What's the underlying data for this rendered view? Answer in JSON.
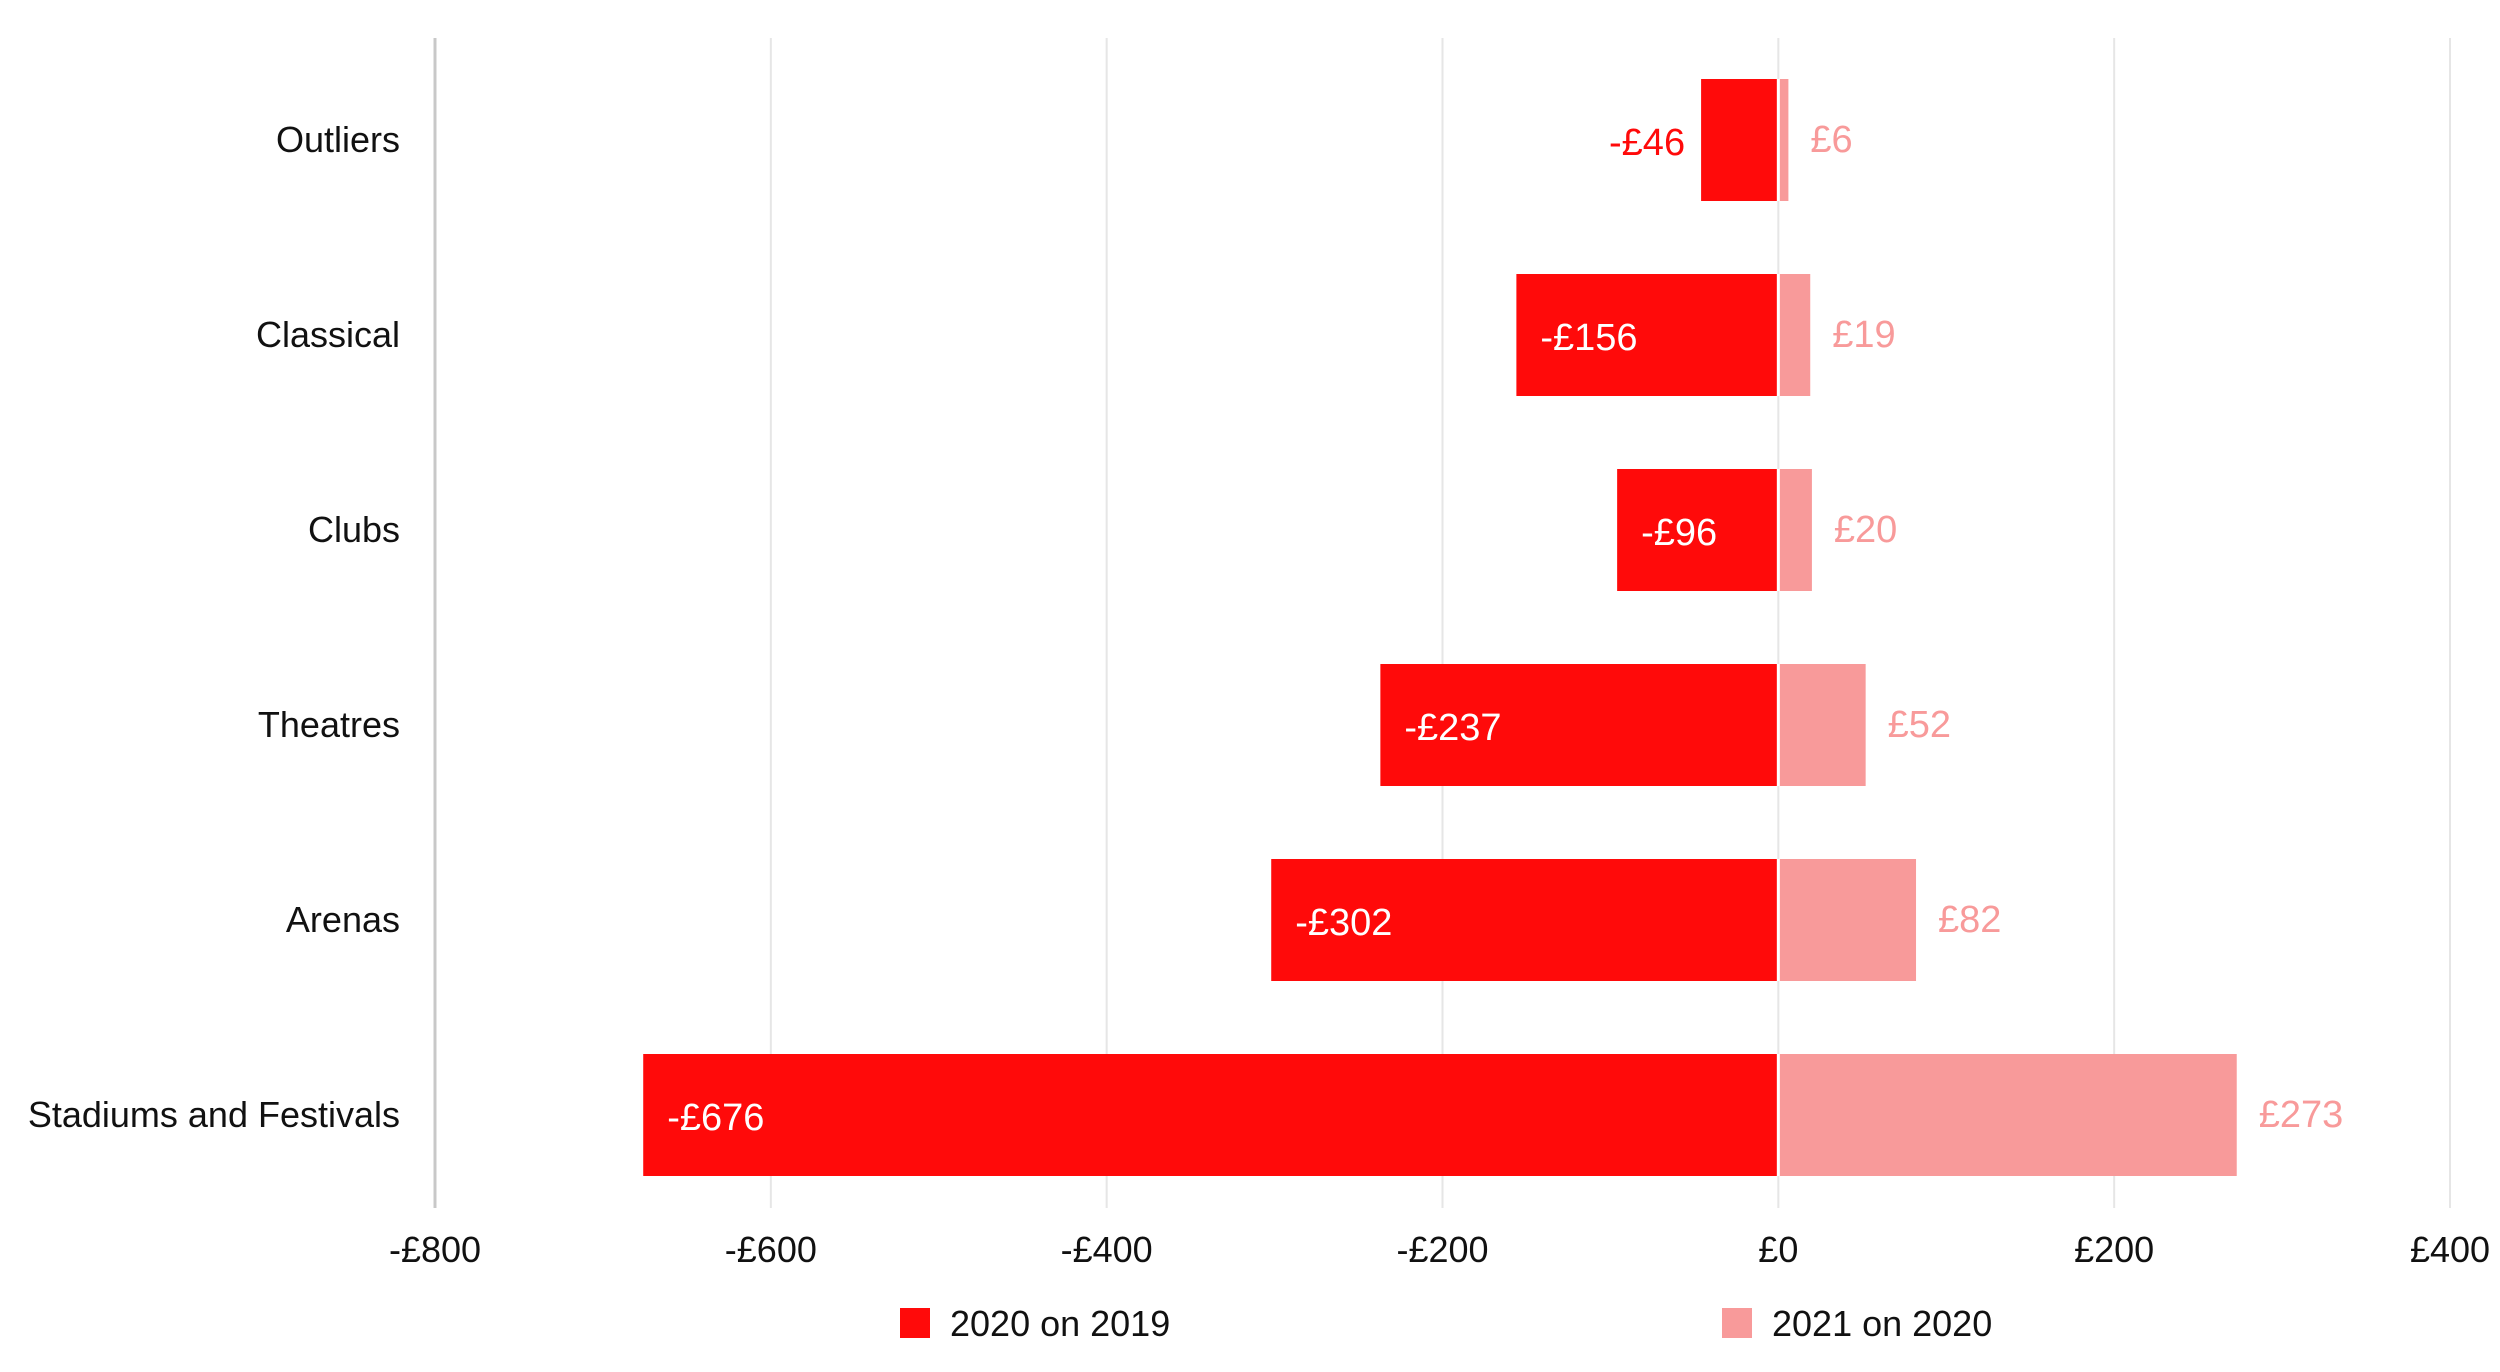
{
  "chart_data": {
    "type": "bar",
    "orientation": "horizontal",
    "stacked_diverging": true,
    "categories": [
      "Outliers",
      "Classical",
      "Clubs",
      "Theatres",
      "Arenas",
      "Stadiums and Festivals"
    ],
    "series": [
      {
        "name": "2020 on 2019",
        "color": "#ff0a0a",
        "values": [
          -46,
          -156,
          -96,
          -237,
          -302,
          -676
        ],
        "labels": [
          "-£46",
          "-£156",
          "-£96",
          "-£237",
          "-£302",
          "-£676"
        ]
      },
      {
        "name": "2021 on 2020",
        "color": "#f89a9a",
        "values": [
          6,
          19,
          20,
          52,
          82,
          273
        ],
        "labels": [
          "£6",
          "£19",
          "£20",
          "£52",
          "£82",
          "£273"
        ]
      }
    ],
    "xlim": [
      -800,
      400
    ],
    "xticks": [
      -800,
      -600,
      -400,
      -200,
      0,
      200,
      400
    ],
    "xtick_labels": [
      "-£800",
      "-£600",
      "-£400",
      "-£200",
      "£0",
      "£200",
      "£400"
    ],
    "grid": "vertical",
    "legend_position": "bottom",
    "title": "",
    "xlabel": "",
    "ylabel": ""
  }
}
